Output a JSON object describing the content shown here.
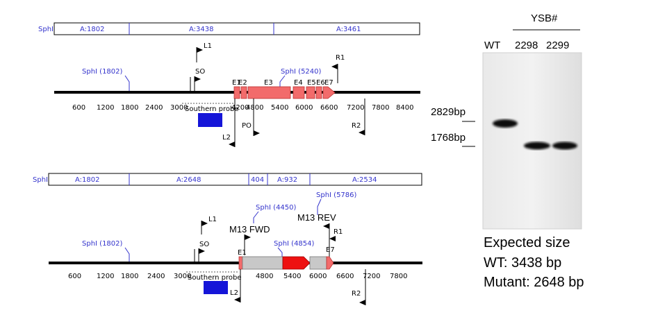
{
  "map_top": {
    "fragment_bar": {
      "start_label": "SphI",
      "fragments": [
        "A:1802",
        "A:3438",
        "A:3461"
      ]
    },
    "ticks": [
      "600",
      "1200",
      "1800",
      "2400",
      "3000",
      "4200",
      "4800",
      "5400",
      "6000",
      "6600",
      "7200",
      "7800",
      "8400"
    ],
    "sites": {
      "sphi_left": "SphI (1802)",
      "sphi_right": "SphI (5240)"
    },
    "exons": [
      "E1",
      "E2",
      "E3",
      "E4",
      "E5",
      "E6",
      "E7"
    ],
    "primers": {
      "l1": "L1",
      "so": "SO",
      "r1": "R1",
      "po": "PO",
      "l2": "L2",
      "r2": "R2"
    },
    "probe_label": "Southern probe"
  },
  "map_bottom": {
    "fragment_bar": {
      "start_label": "SphI",
      "fragments": [
        "A:1802",
        "A:2648",
        "404",
        "A:932",
        "A:2534"
      ]
    },
    "ticks": [
      "600",
      "1200",
      "1800",
      "2400",
      "3000",
      "4800",
      "5400",
      "6000",
      "6600",
      "7200",
      "7800"
    ],
    "sites": {
      "sphi_left": "SphI (1802)",
      "sphi_4450": "SphI (4450)",
      "sphi_4854": "SphI (4854)",
      "sphi_5786": "SphI (5786)"
    },
    "primers": {
      "l1": "L1",
      "so": "SO",
      "m13_fwd": "M13 FWD",
      "m13_rev": "M13 REV",
      "r1": "R1",
      "l2": "L2",
      "r2": "R2"
    },
    "exons": {
      "e1": "E1",
      "e7": "E7"
    },
    "probe_label": "Southern probe"
  },
  "gel": {
    "header": "YSB#",
    "lanes": [
      "WT",
      "2298",
      "2299"
    ],
    "markers": [
      "2829bp",
      "1768bp"
    ]
  },
  "expected": {
    "line1": "Expected size",
    "line2": "WT: 3438 bp",
    "line3": "Mutant: 2648 bp"
  },
  "colors": {
    "exon": "#f26b6b",
    "probe": "#1515d8",
    "cassette": "#c8c8c8",
    "marker_red": "#ee1111",
    "label_blue": "#3333cc"
  }
}
